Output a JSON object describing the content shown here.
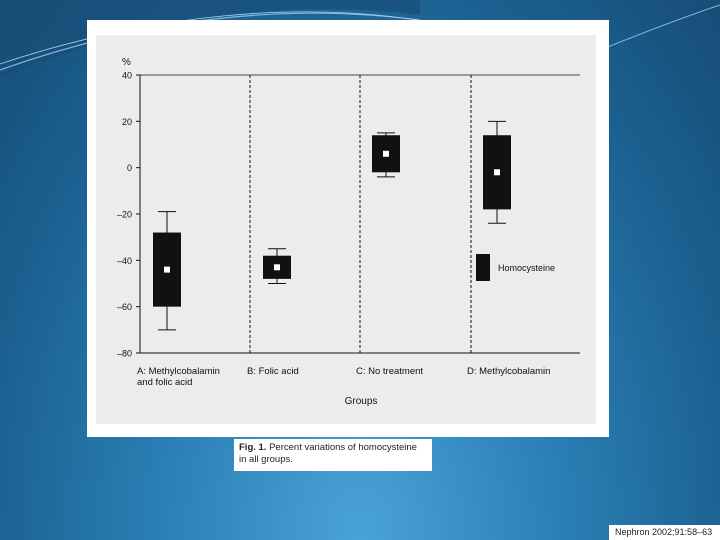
{
  "caption": {
    "fig_label": "Fig. 1.",
    "text_line1": "Percent variations of homocysteine",
    "text_line2": "in all groups."
  },
  "citation": "Nephron 2002;91:58–63",
  "chart_data": {
    "type": "box",
    "ylabel": "%",
    "xlabel": "Groups",
    "ylim": [
      -80,
      40
    ],
    "yticks": [
      40,
      20,
      0,
      -20,
      -40,
      -60,
      -80
    ],
    "ytick_labels": [
      "40",
      "20",
      "0",
      "–20",
      "–40",
      "–60",
      "–80"
    ],
    "legend": {
      "label": "Homocysteine",
      "position": "right"
    },
    "groups": [
      {
        "label_lines": [
          "A: Methylcobalamin",
          "and folic acid"
        ],
        "whisker_low": -70,
        "box_low": -60,
        "median": -44,
        "box_high": -28,
        "whisker_high": -19
      },
      {
        "label_lines": [
          "B: Folic acid"
        ],
        "whisker_low": -50,
        "box_low": -48,
        "median": -43,
        "box_high": -38,
        "whisker_high": -35
      },
      {
        "label_lines": [
          "C: No treatment"
        ],
        "whisker_low": -4,
        "box_low": -2,
        "median": 6,
        "box_high": 14,
        "whisker_high": 15
      },
      {
        "label_lines": [
          "D: Methylcobalamin"
        ],
        "whisker_low": -24,
        "box_low": -18,
        "median": -2,
        "box_high": 14,
        "whisker_high": 20
      }
    ]
  }
}
